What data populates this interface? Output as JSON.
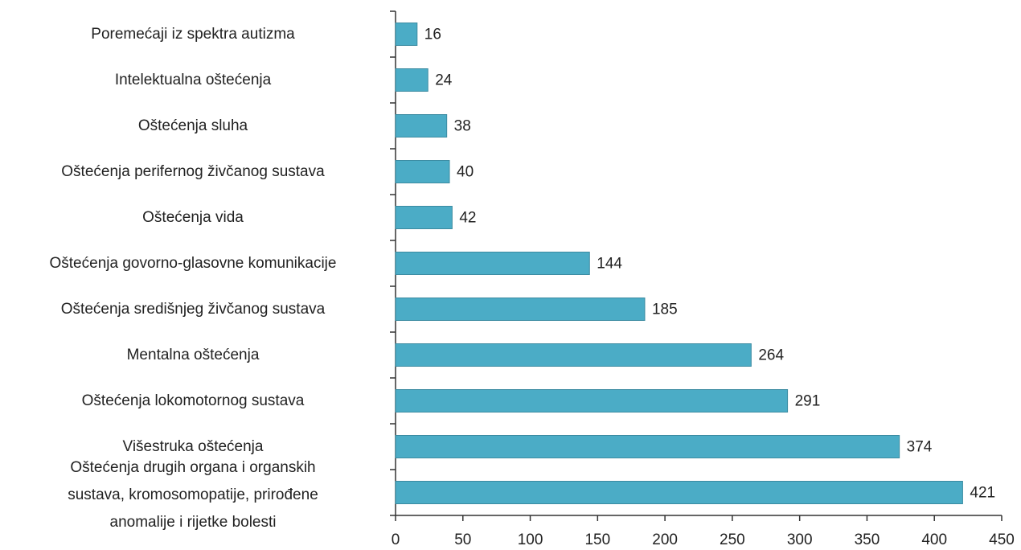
{
  "chart_data": {
    "type": "barh",
    "categories": [
      "Poremećaji iz spektra autizma",
      "Intelektualna oštećenja",
      "Oštećenja sluha",
      "Oštećenja perifernog živčanog sustava",
      "Oštećenja vida",
      "Oštećenja govorno-glasovne komunikacije",
      "Oštećenja središnjeg živčanog sustava",
      "Mentalna oštećenja",
      "Oštećenja lokomotornog sustava",
      "Višestruka oštećenja",
      "Oštećenja drugih organa i organskih sustava, kromosomopatije, prirođene anomalije i rijetke bolesti"
    ],
    "values": [
      16,
      24,
      38,
      40,
      42,
      144,
      185,
      264,
      291,
      374,
      421
    ],
    "color": "#4bacc6",
    "xlim": [
      0,
      450
    ],
    "xticks": [
      0,
      50,
      100,
      150,
      200,
      250,
      300,
      350,
      400,
      450
    ]
  }
}
